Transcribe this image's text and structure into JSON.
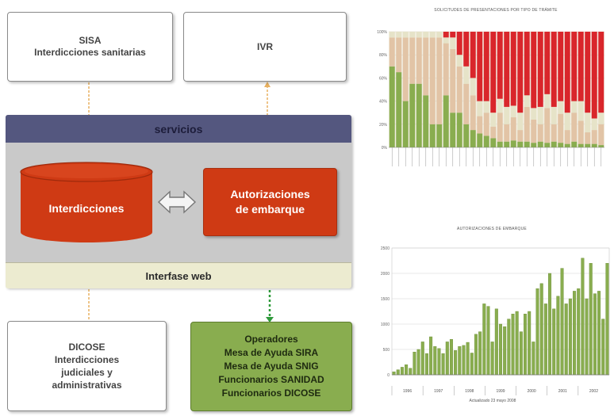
{
  "colors": {
    "band_blue": "#54577f",
    "panel_gray": "#c9c9c9",
    "web_band": "#ecebd0",
    "red_orange": "#cf3a14",
    "green": "#89ad4f",
    "green_dark": "#6e9038",
    "tan": "#e2c4a6",
    "cream": "#e6e3c8",
    "chart_red": "#d9262b",
    "dashed_orange": "#e8b160",
    "dashed_green": "#2f9a3b"
  },
  "sisa": {
    "title": "SISA",
    "subtitle": "Interdicciones sanitarias"
  },
  "ivr": {
    "label": "IVR"
  },
  "servicios": {
    "label": "servicios"
  },
  "interdicciones": {
    "label": "Interdicciones"
  },
  "autorizaciones": {
    "line1": "Autorizaciones",
    "line2": "de embarque"
  },
  "interfase": {
    "label": "Interfase web"
  },
  "dicose": {
    "lines": [
      "DICOSE",
      "Interdicciones",
      "judiciales y",
      "administrativas"
    ]
  },
  "operadores": {
    "lines": [
      "Operadores",
      "Mesa de Ayuda SIRA",
      "Mesa de Ayuda SNIG",
      "Funcionarios SANIDAD",
      "Funcionarios DICOSE"
    ]
  },
  "chart_data": [
    {
      "type": "bar",
      "stacked": "percent",
      "title": "SOLICITUDES DE PRESENTACIONES POR TIPO DE TRÁMITE",
      "yticks": [
        "0%",
        "20%",
        "40%",
        "60%",
        "80%",
        "100%"
      ],
      "ylim": [
        0,
        100
      ],
      "series": [
        {
          "color": "#89ad4f",
          "values": [
            70,
            65,
            40,
            55,
            55,
            45,
            20,
            20,
            45,
            30,
            30,
            20,
            15,
            12,
            10,
            8,
            5,
            5,
            6,
            5,
            5,
            4,
            5,
            4,
            5,
            4,
            3,
            5,
            3,
            3,
            3,
            2
          ]
        },
        {
          "color": "#e2c4a6",
          "values": [
            25,
            30,
            55,
            40,
            40,
            50,
            75,
            75,
            45,
            55,
            40,
            35,
            30,
            15,
            20,
            10,
            25,
            15,
            20,
            10,
            30,
            20,
            15,
            30,
            15,
            25,
            12,
            25,
            20,
            10,
            12,
            18
          ]
        },
        {
          "color": "#e6e3c8",
          "values": [
            5,
            5,
            5,
            5,
            5,
            5,
            5,
            5,
            5,
            10,
            10,
            15,
            15,
            13,
            10,
            12,
            12,
            15,
            10,
            15,
            10,
            10,
            15,
            12,
            15,
            11,
            15,
            10,
            17,
            17,
            10,
            10
          ]
        },
        {
          "color": "#d9262b",
          "values": [
            0,
            0,
            0,
            0,
            0,
            0,
            0,
            0,
            5,
            5,
            20,
            30,
            40,
            60,
            60,
            70,
            58,
            65,
            64,
            70,
            55,
            66,
            65,
            54,
            65,
            60,
            70,
            60,
            60,
            70,
            75,
            70
          ]
        }
      ]
    },
    {
      "type": "bar",
      "title": "AUTORIZACIONES DE EMBARQUE",
      "yticks": [
        "0",
        "500",
        "1000",
        "1500",
        "2000",
        "2500"
      ],
      "ylim": [
        0,
        2500
      ],
      "xlabel": "Actualizado 23 mayo 2008",
      "groups": [
        "1996",
        "1997",
        "1998",
        "1999",
        "2000",
        "2001",
        "2002"
      ],
      "values": [
        60,
        100,
        150,
        200,
        130,
        450,
        500,
        650,
        420,
        750,
        560,
        520,
        420,
        650,
        700,
        480,
        560,
        580,
        640,
        430,
        800,
        850,
        1400,
        1350,
        650,
        1300,
        1000,
        950,
        1100,
        1200,
        1250,
        850,
        1200,
        1250,
        650,
        1700,
        1800,
        1400,
        2000,
        1300,
        1550,
        2100,
        1400,
        1500,
        1650,
        1700,
        2300,
        1500,
        2200,
        1600,
        1650,
        1100,
        2200
      ]
    }
  ]
}
